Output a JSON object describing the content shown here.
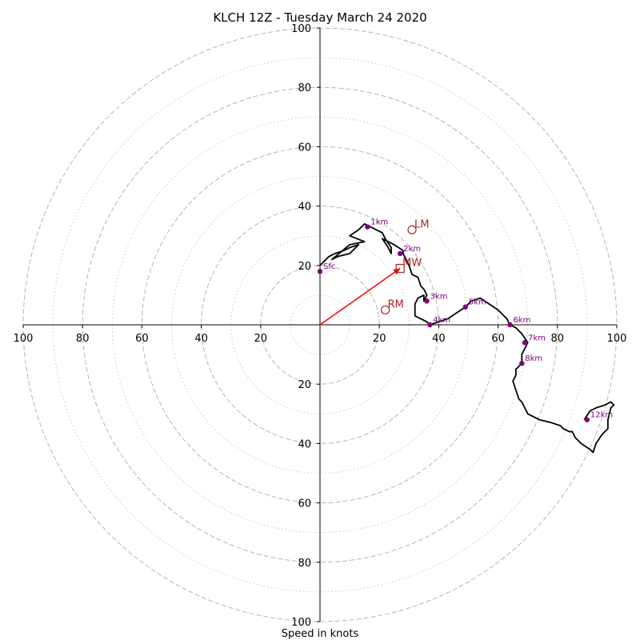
{
  "chart_data": {
    "type": "hodograph",
    "title": "KLCH 12Z - Tuesday March 24 2020",
    "xlabel": "Speed in knots",
    "xlim": [
      -100,
      100
    ],
    "ylim": [
      -100,
      100
    ],
    "rings": {
      "dashed": [
        20,
        40,
        60,
        80,
        100
      ],
      "dotted": [
        10,
        30,
        50,
        70,
        90
      ]
    },
    "x_tick_labels": [
      "100",
      "80",
      "60",
      "40",
      "20",
      "20",
      "40",
      "60",
      "80",
      "100"
    ],
    "y_tick_labels": [
      "100",
      "80",
      "60",
      "40",
      "20",
      "20",
      "40",
      "60",
      "80",
      "100"
    ],
    "hodograph_line": {
      "color": "#000000",
      "points": [
        [
          0,
          20
        ],
        [
          1,
          21
        ],
        [
          3,
          23
        ],
        [
          5,
          24
        ],
        [
          8,
          25
        ],
        [
          10,
          26
        ],
        [
          13,
          27
        ],
        [
          10,
          24
        ],
        [
          6,
          23
        ],
        [
          4,
          22
        ],
        [
          10,
          27
        ],
        [
          15,
          28
        ],
        [
          10,
          30
        ],
        [
          13,
          32
        ],
        [
          15,
          34
        ],
        [
          17,
          33
        ],
        [
          19,
          32
        ],
        [
          21,
          31
        ],
        [
          22,
          29
        ],
        [
          24,
          26
        ],
        [
          24,
          24
        ],
        [
          23,
          26
        ],
        [
          21,
          29
        ],
        [
          25,
          27
        ],
        [
          28,
          25
        ],
        [
          28,
          24
        ],
        [
          29,
          22
        ],
        [
          30,
          20
        ],
        [
          31,
          17
        ],
        [
          33,
          16
        ],
        [
          34,
          13
        ],
        [
          35,
          12
        ],
        [
          36,
          10
        ],
        [
          35,
          8
        ],
        [
          35,
          10
        ],
        [
          33,
          9
        ],
        [
          32,
          7
        ],
        [
          32,
          5
        ],
        [
          32,
          3
        ],
        [
          34,
          2
        ],
        [
          36,
          1
        ],
        [
          37,
          0
        ],
        [
          40,
          1
        ],
        [
          43,
          2
        ],
        [
          46,
          4
        ],
        [
          49,
          6
        ],
        [
          51,
          8
        ],
        [
          54,
          9
        ],
        [
          57,
          7
        ],
        [
          60,
          5
        ],
        [
          63,
          2
        ],
        [
          64,
          0
        ],
        [
          66,
          -1
        ],
        [
          68,
          -3
        ],
        [
          70,
          -6
        ],
        [
          68,
          -10
        ],
        [
          68,
          -13
        ],
        [
          66,
          -15
        ],
        [
          66,
          -17
        ],
        [
          65,
          -19
        ],
        [
          66,
          -22
        ],
        [
          67,
          -25
        ],
        [
          68,
          -26
        ],
        [
          69,
          -28
        ],
        [
          70,
          -30
        ],
        [
          72,
          -31
        ],
        [
          74,
          -32
        ],
        [
          78,
          -33
        ],
        [
          81,
          -34
        ],
        [
          82,
          -35
        ],
        [
          84,
          -36
        ],
        [
          85,
          -36
        ],
        [
          86,
          -38
        ],
        [
          88,
          -40
        ],
        [
          91,
          -42
        ],
        [
          92,
          -43
        ],
        [
          93,
          -40
        ],
        [
          95,
          -37
        ],
        [
          97,
          -35
        ],
        [
          97,
          -32
        ],
        [
          98,
          -28
        ],
        [
          99,
          -27
        ],
        [
          98,
          -26
        ],
        [
          96,
          -27
        ],
        [
          93,
          -28
        ],
        [
          91,
          -29
        ],
        [
          89,
          -32
        ]
      ]
    },
    "height_markers": {
      "color": "#800080",
      "points": [
        {
          "label": "Sfc",
          "u": 0,
          "v": 18
        },
        {
          "label": "1km",
          "u": 16,
          "v": 33
        },
        {
          "label": "2km",
          "u": 27,
          "v": 24
        },
        {
          "label": "3km",
          "u": 36,
          "v": 8
        },
        {
          "label": "4km",
          "u": 37,
          "v": 0
        },
        {
          "label": "5km",
          "u": 49,
          "v": 6
        },
        {
          "label": "6km",
          "u": 64,
          "v": 0
        },
        {
          "label": "7km",
          "u": 69,
          "v": -6
        },
        {
          "label": "8km",
          "u": 68,
          "v": -13
        },
        {
          "label": "12km",
          "u": 90,
          "v": -32
        }
      ]
    },
    "storm_motion": {
      "color": "#b22222",
      "RM": {
        "label": "RM",
        "u": 22,
        "v": 5
      },
      "LM": {
        "label": "LM",
        "u": 31,
        "v": 32
      },
      "MW": {
        "label": "MW",
        "u": 27,
        "v": 19
      }
    },
    "mean_wind_vector": {
      "color": "#ff0000",
      "u": 27,
      "v": 19
    }
  }
}
